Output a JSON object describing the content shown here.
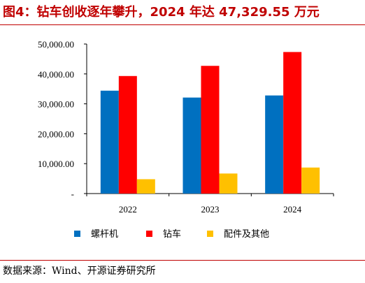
{
  "title": "图4：钻车创收逐年攀升，2024 年达 47,329.55 万元",
  "source": "数据来源：Wind、开源证券研究所",
  "chart_data": {
    "type": "bar",
    "categories": [
      "2022",
      "2023",
      "2024"
    ],
    "series": [
      {
        "name": "螺杆机",
        "values": [
          34400,
          32100,
          32800
        ],
        "color": "#0070c0"
      },
      {
        "name": "钻车",
        "values": [
          39300,
          42700,
          47329.55
        ],
        "color": "#ff0000"
      },
      {
        "name": "配件及其他",
        "values": [
          4800,
          6700,
          8700
        ],
        "color": "#ffc000"
      }
    ],
    "ylim": [
      0,
      50000
    ],
    "yticks": [
      0,
      10000,
      20000,
      30000,
      40000,
      50000
    ],
    "ytick_labels": [
      "-",
      "10,000.00",
      "20,000.00",
      "30,000.00",
      "40,000.00",
      "50,000.00"
    ],
    "legend_position": "bottom",
    "grid": false
  }
}
